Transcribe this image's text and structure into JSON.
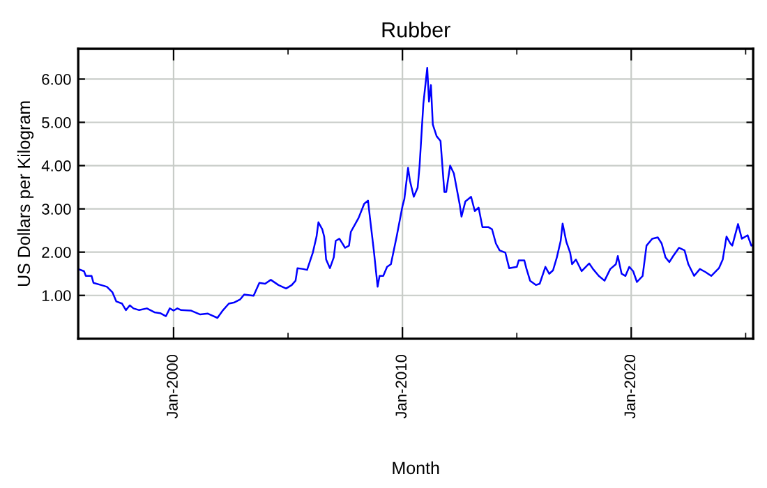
{
  "chart_data": {
    "type": "line",
    "title": "Rubber",
    "xlabel": "Month",
    "ylabel": "US Dollars per Kilogram",
    "series": [
      {
        "color": "#0000ff",
        "x": [
          "1995-11",
          "1996-02",
          "1996-03",
          "1996-06",
          "1996-07",
          "1996-11",
          "1997-02",
          "1997-05",
          "1997-07",
          "1997-10",
          "1997-12",
          "1998-02",
          "1998-04",
          "1998-07",
          "1998-11",
          "1999-03",
          "1999-06",
          "1999-09",
          "1999-11",
          "2000-01",
          "2000-03",
          "2000-05",
          "2000-10",
          "2001-03",
          "2001-07",
          "2001-09",
          "2001-12",
          "2002-03",
          "2002-06",
          "2002-09",
          "2002-12",
          "2003-02",
          "2003-07",
          "2003-10",
          "2004-01",
          "2004-04",
          "2004-08",
          "2004-12",
          "2005-03",
          "2005-05",
          "2005-06",
          "2005-09",
          "2005-11",
          "2006-02",
          "2006-04",
          "2006-05",
          "2006-07",
          "2006-08",
          "2006-09",
          "2006-11",
          "2007-01",
          "2007-02",
          "2007-04",
          "2007-07",
          "2007-09",
          "2007-10",
          "2008-02",
          "2008-05",
          "2008-07",
          "2008-08",
          "2008-10",
          "2008-12",
          "2009-01",
          "2009-03",
          "2009-05",
          "2009-07",
          "2009-10",
          "2010-01",
          "2010-02",
          "2010-04",
          "2010-05",
          "2010-07",
          "2010-09",
          "2010-10",
          "2010-12",
          "2011-02",
          "2011-03",
          "2011-04",
          "2011-05",
          "2011-07",
          "2011-09",
          "2011-11",
          "2011-12",
          "2012-02",
          "2012-04",
          "2012-07",
          "2012-08",
          "2012-10",
          "2013-01",
          "2013-03",
          "2013-05",
          "2013-07",
          "2013-10",
          "2013-12",
          "2014-02",
          "2014-04",
          "2014-07",
          "2014-09",
          "2015-01",
          "2015-02",
          "2015-05",
          "2015-06",
          "2015-08",
          "2015-11",
          "2016-01",
          "2016-04",
          "2016-06",
          "2016-08",
          "2016-10",
          "2016-12",
          "2017-01",
          "2017-03",
          "2017-05",
          "2017-06",
          "2017-08",
          "2017-11",
          "2018-03",
          "2018-05",
          "2018-08",
          "2018-11",
          "2019-02",
          "2019-05",
          "2019-06",
          "2019-08",
          "2019-10",
          "2019-12",
          "2020-02",
          "2020-04",
          "2020-07",
          "2020-09",
          "2020-12",
          "2021-03",
          "2021-05",
          "2021-07",
          "2021-09",
          "2021-11",
          "2022-02",
          "2022-05",
          "2022-07",
          "2022-10",
          "2023-01",
          "2023-04",
          "2023-07",
          "2023-11",
          "2024-01",
          "2024-03",
          "2024-05",
          "2024-06",
          "2024-09",
          "2024-11",
          "2025-02",
          "2025-04",
          "2025-05"
        ],
        "values": [
          1.61,
          1.56,
          1.45,
          1.45,
          1.29,
          1.24,
          1.2,
          1.07,
          0.86,
          0.81,
          0.66,
          0.77,
          0.7,
          0.66,
          0.7,
          0.61,
          0.59,
          0.52,
          0.7,
          0.65,
          0.7,
          0.66,
          0.65,
          0.56,
          0.58,
          0.54,
          0.48,
          0.66,
          0.81,
          0.84,
          0.91,
          1.02,
          0.99,
          1.29,
          1.27,
          1.36,
          1.24,
          1.16,
          1.24,
          1.34,
          1.63,
          1.61,
          1.59,
          1.99,
          2.36,
          2.69,
          2.53,
          2.36,
          1.83,
          1.63,
          1.88,
          2.26,
          2.31,
          2.1,
          2.15,
          2.47,
          2.79,
          3.12,
          3.19,
          2.79,
          2.04,
          1.2,
          1.45,
          1.45,
          1.66,
          1.72,
          2.36,
          3.06,
          3.23,
          3.95,
          3.65,
          3.28,
          3.49,
          3.98,
          5.43,
          6.26,
          5.48,
          5.86,
          4.95,
          4.68,
          4.57,
          3.39,
          3.39,
          4.0,
          3.82,
          3.12,
          2.82,
          3.17,
          3.28,
          2.95,
          3.03,
          2.58,
          2.58,
          2.53,
          2.2,
          2.04,
          1.99,
          1.63,
          1.66,
          1.81,
          1.81,
          1.63,
          1.34,
          1.24,
          1.27,
          1.66,
          1.5,
          1.58,
          1.88,
          2.26,
          2.66,
          2.24,
          1.99,
          1.72,
          1.83,
          1.56,
          1.74,
          1.61,
          1.45,
          1.34,
          1.61,
          1.72,
          1.91,
          1.5,
          1.45,
          1.66,
          1.56,
          1.31,
          1.45,
          2.15,
          2.31,
          2.34,
          2.2,
          1.88,
          1.77,
          1.91,
          2.1,
          2.04,
          1.72,
          1.45,
          1.61,
          1.54,
          1.45,
          1.63,
          1.83,
          2.36,
          2.2,
          2.15,
          2.65,
          2.31,
          2.39,
          2.15,
          2.17
        ]
      }
    ],
    "xlim": [
      "1995-11",
      "2025-05"
    ],
    "xticks": [
      {
        "value": "2000-01",
        "label": "Jan-2000"
      },
      {
        "value": "2005-01",
        "label": null
      },
      {
        "value": "2010-01",
        "label": "Jan-2010"
      },
      {
        "value": "2015-01",
        "label": null
      },
      {
        "value": "2020-01",
        "label": "Jan-2020"
      },
      {
        "value": "2025-01",
        "label": null
      }
    ],
    "ylim": [
      0,
      6.7
    ],
    "yticks": [
      {
        "value": 1,
        "label": "1.00"
      },
      {
        "value": 2,
        "label": "2.00"
      },
      {
        "value": 3,
        "label": "3.00"
      },
      {
        "value": 4,
        "label": "4.00"
      },
      {
        "value": 5,
        "label": "5.00"
      },
      {
        "value": 6,
        "label": "6.00"
      }
    ],
    "grid": true,
    "marker": "none",
    "line_style": "solid",
    "legend": false
  }
}
